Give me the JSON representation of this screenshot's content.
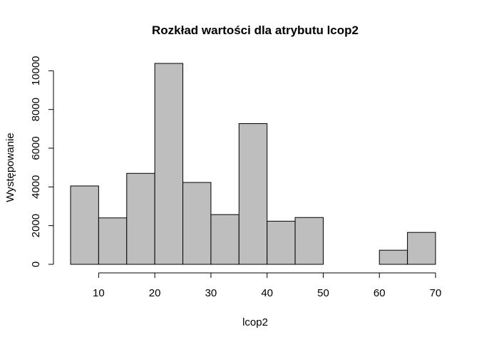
{
  "chart_data": {
    "type": "histogram",
    "title": "Rozkład wartości dla atrybutu lcop2",
    "xlabel": "lcop2",
    "ylabel": "Występowanie",
    "bin_edges": [
      5,
      10,
      15,
      20,
      25,
      30,
      35,
      40,
      45,
      50,
      55,
      60,
      65,
      70
    ],
    "counts": [
      4050,
      2400,
      4700,
      10380,
      4230,
      2570,
      7270,
      2230,
      2420,
      0,
      0,
      730,
      1650
    ],
    "x_ticks": [
      10,
      20,
      30,
      40,
      50,
      60,
      70
    ],
    "y_ticks": [
      0,
      2000,
      4000,
      6000,
      8000,
      10000
    ],
    "xlim": [
      5,
      70
    ],
    "ylim": [
      0,
      10380
    ],
    "bar_fill": "#bebebe",
    "bar_stroke": "#000000",
    "grid": false
  }
}
